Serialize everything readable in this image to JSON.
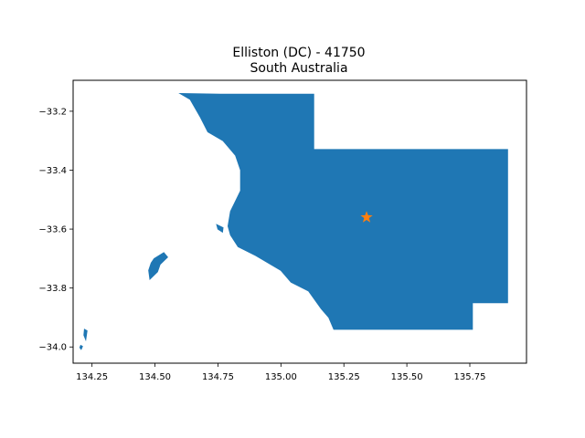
{
  "title": {
    "line1": "Elliston (DC) - 41750",
    "line2": "South Australia"
  },
  "colors": {
    "region_fill": "#1f77b4",
    "marker": "#ff7f0e",
    "axes": "#000000",
    "background": "#ffffff"
  },
  "chart_data": {
    "type": "map",
    "title": "Elliston (DC) - 41750\nSouth Australia",
    "xlim": [
      134.175,
      135.975
    ],
    "ylim": [
      -34.055,
      -33.095
    ],
    "x_ticks": [
      {
        "value": 134.25,
        "label": "134.25"
      },
      {
        "value": 134.5,
        "label": "134.50"
      },
      {
        "value": 134.75,
        "label": "134.75"
      },
      {
        "value": 135.0,
        "label": "135.00"
      },
      {
        "value": 135.25,
        "label": "135.25"
      },
      {
        "value": 135.5,
        "label": "135.50"
      },
      {
        "value": 135.75,
        "label": "135.75"
      }
    ],
    "y_ticks": [
      {
        "value": -33.2,
        "label": "−33.2"
      },
      {
        "value": -33.4,
        "label": "−33.4"
      },
      {
        "value": -33.6,
        "label": "−33.6"
      },
      {
        "value": -33.8,
        "label": "−33.8"
      },
      {
        "value": -34.0,
        "label": "−34.0"
      }
    ],
    "marker": {
      "lon": 135.34,
      "lat": -33.56,
      "symbol": "star"
    },
    "polygons": [
      [
        [
          134.6,
          -33.14
        ],
        [
          134.76,
          -33.142
        ],
        [
          135.13,
          -33.142
        ],
        [
          135.13,
          -33.33
        ],
        [
          135.9,
          -33.33
        ],
        [
          135.9,
          -33.85
        ],
        [
          135.76,
          -33.85
        ],
        [
          135.76,
          -33.94
        ],
        [
          135.21,
          -33.94
        ],
        [
          135.19,
          -33.9
        ],
        [
          135.16,
          -33.87
        ],
        [
          135.11,
          -33.81
        ],
        [
          135.04,
          -33.78
        ],
        [
          135.0,
          -33.74
        ],
        [
          134.9,
          -33.69
        ],
        [
          134.83,
          -33.66
        ],
        [
          134.8,
          -33.62
        ],
        [
          134.79,
          -33.59
        ],
        [
          134.8,
          -33.54
        ],
        [
          134.84,
          -33.47
        ],
        [
          134.84,
          -33.4
        ],
        [
          134.82,
          -33.35
        ],
        [
          134.77,
          -33.3
        ],
        [
          134.71,
          -33.27
        ],
        [
          134.68,
          -33.22
        ],
        [
          134.64,
          -33.16
        ]
      ],
      [
        [
          134.497,
          -33.7
        ],
        [
          134.535,
          -33.68
        ],
        [
          134.55,
          -33.695
        ],
        [
          134.52,
          -33.72
        ],
        [
          134.51,
          -33.745
        ],
        [
          134.48,
          -33.77
        ],
        [
          134.475,
          -33.74
        ],
        [
          134.485,
          -33.715
        ]
      ],
      [
        [
          134.745,
          -33.585
        ],
        [
          134.77,
          -33.595
        ],
        [
          134.768,
          -33.61
        ],
        [
          134.75,
          -33.6
        ]
      ],
      [
        [
          134.22,
          -33.94
        ],
        [
          134.23,
          -33.945
        ],
        [
          134.225,
          -33.975
        ],
        [
          134.218,
          -33.96
        ]
      ],
      [
        [
          134.205,
          -33.995
        ],
        [
          134.212,
          -33.998
        ],
        [
          134.207,
          -34.008
        ],
        [
          134.202,
          -34.002
        ]
      ]
    ]
  }
}
